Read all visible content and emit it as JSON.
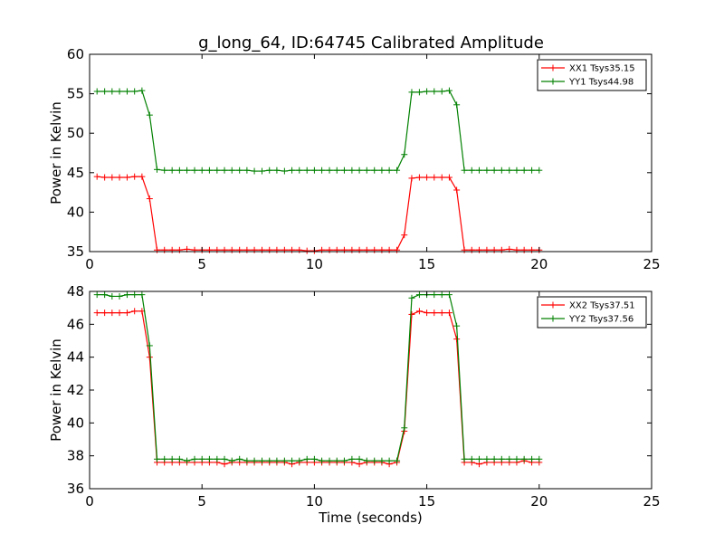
{
  "figure": {
    "title": "g_long_64, ID:64745 Calibrated Amplitude"
  },
  "chart_data": [
    {
      "type": "line",
      "title": "g_long_64, ID:64745 Calibrated Amplitude",
      "xlabel": "",
      "ylabel": "Power in Kelvin",
      "xlim": [
        0,
        25
      ],
      "ylim": [
        35,
        60
      ],
      "xticks": [
        "0",
        "5",
        "10",
        "15",
        "20",
        "25"
      ],
      "yticks": [
        "35",
        "40",
        "45",
        "50",
        "55",
        "60"
      ],
      "legend_position": "top-right",
      "x": [
        0.33,
        0.67,
        1.0,
        1.33,
        1.67,
        2.0,
        2.33,
        2.67,
        3.0,
        3.33,
        3.67,
        4.0,
        4.33,
        4.67,
        5.0,
        5.33,
        5.67,
        6.0,
        6.33,
        6.67,
        7.0,
        7.33,
        7.67,
        8.0,
        8.33,
        8.67,
        9.0,
        9.33,
        9.67,
        10.0,
        10.33,
        10.67,
        11.0,
        11.33,
        11.67,
        12.0,
        12.33,
        12.67,
        13.0,
        13.33,
        13.67,
        14.0,
        14.33,
        14.67,
        15.0,
        15.33,
        15.67,
        16.0,
        16.33,
        16.67,
        17.0,
        17.33,
        17.67,
        18.0,
        18.33,
        18.67,
        19.0,
        19.33,
        19.67,
        20.0
      ],
      "series": [
        {
          "name": "XX1 Tsys35.15",
          "color": "#ff0000",
          "values": [
            44.5,
            44.4,
            44.4,
            44.4,
            44.4,
            44.5,
            44.5,
            41.7,
            35.2,
            35.2,
            35.2,
            35.2,
            35.3,
            35.2,
            35.2,
            35.2,
            35.2,
            35.2,
            35.2,
            35.2,
            35.2,
            35.2,
            35.2,
            35.2,
            35.2,
            35.2,
            35.2,
            35.2,
            35.1,
            35.1,
            35.2,
            35.2,
            35.2,
            35.2,
            35.2,
            35.2,
            35.2,
            35.2,
            35.2,
            35.2,
            35.2,
            37.1,
            44.3,
            44.4,
            44.4,
            44.4,
            44.4,
            44.4,
            42.8,
            35.2,
            35.2,
            35.2,
            35.2,
            35.2,
            35.2,
            35.3,
            35.2,
            35.2,
            35.2,
            35.2
          ]
        },
        {
          "name": "YY1 Tsys44.98",
          "color": "#008000",
          "values": [
            55.3,
            55.3,
            55.3,
            55.3,
            55.3,
            55.3,
            55.4,
            52.3,
            45.4,
            45.3,
            45.3,
            45.3,
            45.3,
            45.3,
            45.3,
            45.3,
            45.3,
            45.3,
            45.3,
            45.3,
            45.3,
            45.2,
            45.2,
            45.3,
            45.3,
            45.2,
            45.3,
            45.3,
            45.3,
            45.3,
            45.3,
            45.3,
            45.3,
            45.3,
            45.3,
            45.3,
            45.3,
            45.3,
            45.3,
            45.3,
            45.3,
            47.3,
            55.2,
            55.2,
            55.3,
            55.3,
            55.3,
            55.4,
            53.6,
            45.3,
            45.3,
            45.3,
            45.3,
            45.3,
            45.3,
            45.3,
            45.3,
            45.3,
            45.3,
            45.3
          ]
        }
      ]
    },
    {
      "type": "line",
      "title": "",
      "xlabel": "Time (seconds)",
      "ylabel": "Power in Kelvin",
      "xlim": [
        0,
        25
      ],
      "ylim": [
        36,
        48
      ],
      "xticks": [
        "0",
        "5",
        "10",
        "15",
        "20",
        "25"
      ],
      "yticks": [
        "36",
        "38",
        "40",
        "42",
        "44",
        "46",
        "48"
      ],
      "legend_position": "top-right",
      "x": [
        0.33,
        0.67,
        1.0,
        1.33,
        1.67,
        2.0,
        2.33,
        2.67,
        3.0,
        3.33,
        3.67,
        4.0,
        4.33,
        4.67,
        5.0,
        5.33,
        5.67,
        6.0,
        6.33,
        6.67,
        7.0,
        7.33,
        7.67,
        8.0,
        8.33,
        8.67,
        9.0,
        9.33,
        9.67,
        10.0,
        10.33,
        10.67,
        11.0,
        11.33,
        11.67,
        12.0,
        12.33,
        12.67,
        13.0,
        13.33,
        13.67,
        14.0,
        14.33,
        14.67,
        15.0,
        15.33,
        15.67,
        16.0,
        16.33,
        16.67,
        17.0,
        17.33,
        17.67,
        18.0,
        18.33,
        18.67,
        19.0,
        19.33,
        19.67,
        20.0
      ],
      "series": [
        {
          "name": "XX2 Tsys37.51",
          "color": "#ff0000",
          "values": [
            46.7,
            46.7,
            46.7,
            46.7,
            46.7,
            46.8,
            46.8,
            44.0,
            37.6,
            37.6,
            37.6,
            37.6,
            37.6,
            37.6,
            37.6,
            37.6,
            37.6,
            37.5,
            37.6,
            37.6,
            37.6,
            37.6,
            37.6,
            37.6,
            37.6,
            37.6,
            37.5,
            37.6,
            37.6,
            37.6,
            37.6,
            37.6,
            37.6,
            37.6,
            37.6,
            37.5,
            37.6,
            37.6,
            37.6,
            37.5,
            37.6,
            39.5,
            46.6,
            46.8,
            46.7,
            46.7,
            46.7,
            46.7,
            45.1,
            37.6,
            37.6,
            37.5,
            37.6,
            37.6,
            37.6,
            37.6,
            37.6,
            37.7,
            37.6,
            37.6
          ]
        },
        {
          "name": "YY2 Tsys37.56",
          "color": "#008000",
          "values": [
            47.8,
            47.8,
            47.7,
            47.7,
            47.8,
            47.8,
            47.8,
            44.7,
            37.8,
            37.8,
            37.8,
            37.8,
            37.7,
            37.8,
            37.8,
            37.8,
            37.8,
            37.8,
            37.7,
            37.8,
            37.7,
            37.7,
            37.7,
            37.7,
            37.7,
            37.7,
            37.7,
            37.7,
            37.8,
            37.8,
            37.7,
            37.7,
            37.7,
            37.7,
            37.8,
            37.8,
            37.7,
            37.7,
            37.7,
            37.7,
            37.7,
            39.7,
            47.6,
            47.8,
            47.8,
            47.8,
            47.8,
            47.8,
            45.9,
            37.8,
            37.8,
            37.8,
            37.8,
            37.8,
            37.8,
            37.8,
            37.8,
            37.8,
            37.8,
            37.8
          ]
        }
      ]
    }
  ]
}
